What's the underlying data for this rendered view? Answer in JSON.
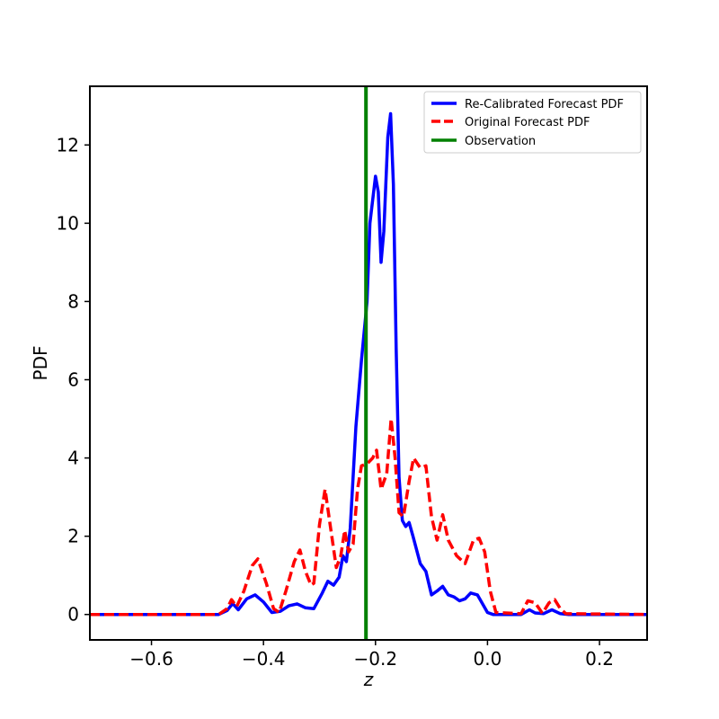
{
  "chart_data": {
    "type": "line",
    "xlabel": "z",
    "ylabel": "PDF",
    "xlim": [
      -0.71,
      0.285
    ],
    "ylim": [
      -0.65,
      13.5
    ],
    "xticks": [
      -0.6,
      -0.4,
      -0.2,
      0.0,
      0.2
    ],
    "xtick_labels": [
      "−0.6",
      "−0.4",
      "−0.2",
      "0.0",
      "0.2"
    ],
    "yticks": [
      0,
      2,
      4,
      6,
      8,
      10,
      12
    ],
    "ytick_labels": [
      "0",
      "2",
      "4",
      "6",
      "8",
      "10",
      "12"
    ],
    "grid": false,
    "legend_position": "top-right",
    "series": [
      {
        "name": "Re-Calibrated Forecast PDF",
        "color": "#0000ff",
        "style": "solid",
        "points": [
          [
            -0.71,
            0
          ],
          [
            -0.48,
            0
          ],
          [
            -0.465,
            0.1
          ],
          [
            -0.455,
            0.28
          ],
          [
            -0.445,
            0.12
          ],
          [
            -0.43,
            0.4
          ],
          [
            -0.415,
            0.5
          ],
          [
            -0.4,
            0.32
          ],
          [
            -0.385,
            0.05
          ],
          [
            -0.37,
            0.08
          ],
          [
            -0.355,
            0.22
          ],
          [
            -0.34,
            0.27
          ],
          [
            -0.325,
            0.17
          ],
          [
            -0.31,
            0.15
          ],
          [
            -0.295,
            0.55
          ],
          [
            -0.285,
            0.85
          ],
          [
            -0.275,
            0.75
          ],
          [
            -0.265,
            0.95
          ],
          [
            -0.258,
            1.5
          ],
          [
            -0.252,
            1.35
          ],
          [
            -0.245,
            2.2
          ],
          [
            -0.235,
            4.8
          ],
          [
            -0.225,
            6.5
          ],
          [
            -0.215,
            8.0
          ],
          [
            -0.21,
            10.0
          ],
          [
            -0.2,
            11.2
          ],
          [
            -0.195,
            10.8
          ],
          [
            -0.19,
            9.0
          ],
          [
            -0.185,
            9.8
          ],
          [
            -0.178,
            12.2
          ],
          [
            -0.173,
            12.8
          ],
          [
            -0.168,
            11.0
          ],
          [
            -0.163,
            6.8
          ],
          [
            -0.158,
            3.5
          ],
          [
            -0.152,
            2.4
          ],
          [
            -0.146,
            2.25
          ],
          [
            -0.14,
            2.35
          ],
          [
            -0.133,
            2.0
          ],
          [
            -0.12,
            1.3
          ],
          [
            -0.11,
            1.1
          ],
          [
            -0.1,
            0.5
          ],
          [
            -0.09,
            0.6
          ],
          [
            -0.08,
            0.72
          ],
          [
            -0.07,
            0.5
          ],
          [
            -0.06,
            0.45
          ],
          [
            -0.05,
            0.35
          ],
          [
            -0.04,
            0.4
          ],
          [
            -0.03,
            0.55
          ],
          [
            -0.018,
            0.5
          ],
          [
            -0.01,
            0.3
          ],
          [
            0.0,
            0.05
          ],
          [
            0.01,
            0
          ],
          [
            0.06,
            0
          ],
          [
            0.075,
            0.12
          ],
          [
            0.085,
            0.04
          ],
          [
            0.1,
            0.02
          ],
          [
            0.115,
            0.12
          ],
          [
            0.13,
            0.02
          ],
          [
            0.145,
            0
          ],
          [
            0.285,
            0
          ]
        ]
      },
      {
        "name": "Original Forecast PDF",
        "color": "#ff0000",
        "style": "dashed",
        "points": [
          [
            -0.71,
            0
          ],
          [
            -0.48,
            0
          ],
          [
            -0.465,
            0.15
          ],
          [
            -0.457,
            0.38
          ],
          [
            -0.448,
            0.2
          ],
          [
            -0.435,
            0.6
          ],
          [
            -0.42,
            1.25
          ],
          [
            -0.41,
            1.42
          ],
          [
            -0.395,
            0.8
          ],
          [
            -0.382,
            0.15
          ],
          [
            -0.372,
            0.05
          ],
          [
            -0.36,
            0.6
          ],
          [
            -0.345,
            1.35
          ],
          [
            -0.335,
            1.65
          ],
          [
            -0.325,
            1.1
          ],
          [
            -0.315,
            0.75
          ],
          [
            -0.31,
            0.8
          ],
          [
            -0.3,
            2.3
          ],
          [
            -0.29,
            3.2
          ],
          [
            -0.28,
            2.2
          ],
          [
            -0.27,
            1.2
          ],
          [
            -0.262,
            1.5
          ],
          [
            -0.255,
            2.15
          ],
          [
            -0.248,
            1.6
          ],
          [
            -0.24,
            1.8
          ],
          [
            -0.232,
            3.2
          ],
          [
            -0.225,
            3.8
          ],
          [
            -0.215,
            3.85
          ],
          [
            -0.205,
            4.0
          ],
          [
            -0.198,
            4.2
          ],
          [
            -0.19,
            3.2
          ],
          [
            -0.18,
            3.6
          ],
          [
            -0.172,
            5.0
          ],
          [
            -0.165,
            4.0
          ],
          [
            -0.158,
            2.6
          ],
          [
            -0.15,
            2.5
          ],
          [
            -0.14,
            3.4
          ],
          [
            -0.132,
            4.0
          ],
          [
            -0.12,
            3.75
          ],
          [
            -0.11,
            3.8
          ],
          [
            -0.1,
            2.5
          ],
          [
            -0.09,
            1.9
          ],
          [
            -0.08,
            2.55
          ],
          [
            -0.07,
            1.9
          ],
          [
            -0.055,
            1.5
          ],
          [
            -0.04,
            1.3
          ],
          [
            -0.025,
            1.9
          ],
          [
            -0.015,
            1.95
          ],
          [
            -0.005,
            1.6
          ],
          [
            0.005,
            0.6
          ],
          [
            0.015,
            0.05
          ],
          [
            0.06,
            0.02
          ],
          [
            0.072,
            0.35
          ],
          [
            0.085,
            0.3
          ],
          [
            0.098,
            0.03
          ],
          [
            0.11,
            0.3
          ],
          [
            0.12,
            0.38
          ],
          [
            0.13,
            0.15
          ],
          [
            0.14,
            0.02
          ],
          [
            0.285,
            0
          ]
        ]
      },
      {
        "name": "Observation",
        "color": "#008000",
        "style": "vline",
        "x": -0.217
      }
    ]
  }
}
